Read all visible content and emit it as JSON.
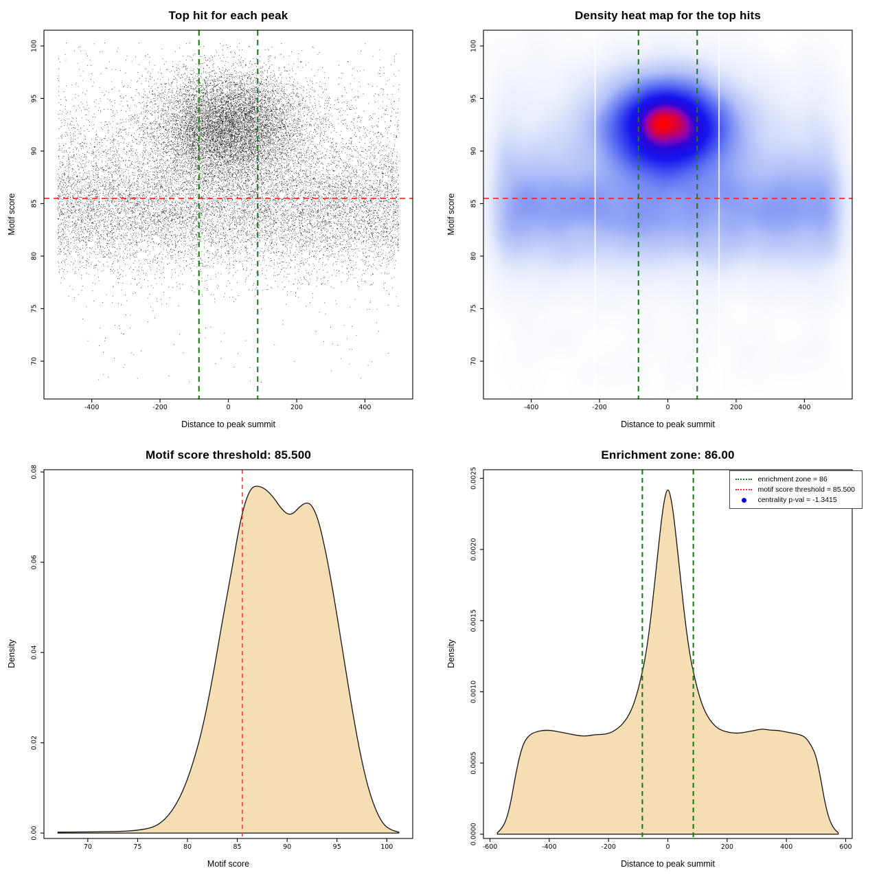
{
  "chart_data": [
    {
      "type": "scatter",
      "title": "Top hit for each peak",
      "xlabel": "Distance to peak summit",
      "ylabel": "Motif score",
      "xlim": [
        -540,
        540
      ],
      "ylim": [
        66.4,
        101.5
      ],
      "xticks": [
        -400,
        -200,
        0,
        200,
        400
      ],
      "xtick_labels": [
        "-400",
        "-200",
        "0",
        "200",
        "400"
      ],
      "yticks": [
        70,
        75,
        80,
        85,
        90,
        95,
        100
      ],
      "ytick_labels": [
        "70",
        "75",
        "80",
        "85",
        "90",
        "95",
        "100"
      ],
      "grid": false,
      "point_color": "#000000",
      "n_points": 22000,
      "motif_score_threshold": 85.5,
      "enrichment_zone": [
        -86,
        86
      ],
      "threshold_line": {
        "y": 85.5,
        "color": "#ee2222",
        "dash": [
          8,
          6
        ]
      },
      "zone_lines": {
        "x": [
          -86,
          86
        ],
        "color": "#1b7a1b",
        "dash": [
          8,
          6
        ]
      },
      "distribution": {
        "y_range": [
          67.5,
          100.4
        ],
        "x_range": [
          -505,
          505
        ],
        "components": [
          {
            "weight": 0.386,
            "x": {
              "kind": "uniform",
              "min": -500,
              "max": 500
            },
            "y": {
              "kind": "normal",
              "mean": 84.3,
              "sd": 3.0
            }
          },
          {
            "weight": 0.18,
            "x": {
              "kind": "uniform",
              "min": -500,
              "max": 500
            },
            "y": {
              "kind": "normal",
              "mean": 89.0,
              "sd": 4.4
            }
          },
          {
            "weight": 0.43,
            "x": {
              "kind": "normal",
              "mean": 0,
              "sd": 108
            },
            "y": {
              "kind": "normal",
              "mean": 92.4,
              "sd": 2.6
            }
          },
          {
            "weight": 0.004,
            "x": {
              "kind": "uniform",
              "min": -470,
              "max": 470
            },
            "y": {
              "kind": "uniform",
              "min": 68,
              "max": 77.5
            }
          }
        ]
      }
    },
    {
      "type": "heatmap",
      "title": "Density heat map for the top hits",
      "xlabel": "Distance to peak summit",
      "ylabel": "Motif score",
      "xlim": [
        -540,
        540
      ],
      "ylim": [
        66.4,
        101.5
      ],
      "xticks": [
        -400,
        -200,
        0,
        200,
        400
      ],
      "xtick_labels": [
        "-400",
        "-200",
        "0",
        "200",
        "400"
      ],
      "yticks": [
        70,
        75,
        80,
        85,
        90,
        95,
        100
      ],
      "ytick_labels": [
        "70",
        "75",
        "80",
        "85",
        "90",
        "95",
        "100"
      ],
      "grid": false,
      "hot_spot": {
        "x": 0,
        "y": 92.4
      },
      "threshold_line": {
        "y": 85.5,
        "color": "#ee2222",
        "dash": [
          8,
          6
        ]
      },
      "zone_lines": {
        "x": [
          -86,
          86
        ],
        "color": "#1b7a1b",
        "dash": [
          8,
          6
        ]
      },
      "white_gaps_x": [
        -213,
        150
      ],
      "colormap": [
        {
          "t": 0,
          "c": "#ffffff"
        },
        {
          "t": 0.18,
          "c": "#e8edfc"
        },
        {
          "t": 0.4,
          "c": "#aebef7"
        },
        {
          "t": 0.6,
          "c": "#5a6ef2"
        },
        {
          "t": 0.78,
          "c": "#1515ee"
        },
        {
          "t": 0.88,
          "c": "#2a06d8"
        },
        {
          "t": 0.93,
          "c": "#8c04b4"
        },
        {
          "t": 1,
          "c": "#ff0000"
        }
      ]
    },
    {
      "type": "area",
      "title": "Motif score threshold: 85.500",
      "xlabel": "Motif score",
      "ylabel": "Density",
      "xlim": [
        65.6,
        102.6
      ],
      "ylim": [
        -0.0012,
        0.0805
      ],
      "xticks": [
        70,
        75,
        80,
        85,
        90,
        95,
        100
      ],
      "xtick_labels": [
        "70",
        "75",
        "80",
        "85",
        "90",
        "95",
        "100"
      ],
      "yticks": [
        0,
        0.02,
        0.04,
        0.06,
        0.08
      ],
      "ytick_labels": [
        "0.00",
        "0.02",
        "0.04",
        "0.06",
        "0.08"
      ],
      "grid": false,
      "fill_color": "#f5deb3",
      "line_color": "#111111",
      "threshold_line": {
        "x": 85.5,
        "color": "#dd4444",
        "dash": [
          6,
          5
        ]
      },
      "curve": {
        "x": [
          67,
          73,
          75,
          76.5,
          77.5,
          78.5,
          79.5,
          80.5,
          81.5,
          82.5,
          83.5,
          84.5,
          85.2,
          85.8,
          86.4,
          87,
          87.8,
          88.6,
          89.3,
          90,
          90.6,
          91.2,
          91.9,
          92.5,
          93.2,
          94,
          94.8,
          95.6,
          96.4,
          97.2,
          98,
          98.8,
          99.6,
          100.4,
          101.2
        ],
        "y": [
          0.0002,
          0.0003,
          0.0006,
          0.0012,
          0.0025,
          0.005,
          0.009,
          0.015,
          0.023,
          0.034,
          0.047,
          0.059,
          0.068,
          0.0735,
          0.0765,
          0.077,
          0.0763,
          0.0745,
          0.0722,
          0.0706,
          0.0707,
          0.0722,
          0.0733,
          0.0727,
          0.069,
          0.061,
          0.051,
          0.04,
          0.029,
          0.019,
          0.011,
          0.0055,
          0.002,
          0.0007,
          0.0002
        ]
      }
    },
    {
      "type": "area",
      "title": "Enrichment zone: 86.00",
      "xlabel": "Distance to peak summit",
      "ylabel": "Density",
      "xlim": [
        -622,
        622
      ],
      "ylim": [
        -3e-05,
        0.00256
      ],
      "xticks": [
        -600,
        -400,
        -200,
        0,
        200,
        400,
        600
      ],
      "xtick_labels": [
        "-600",
        "-400",
        "-200",
        "0",
        "200",
        "400",
        "600"
      ],
      "yticks": [
        0,
        0.0005,
        0.001,
        0.0015,
        0.002,
        0.0025
      ],
      "ytick_labels": [
        "0.0000",
        "0.0005",
        "0.0010",
        "0.0015",
        "0.0020",
        "0.0025"
      ],
      "grid": false,
      "fill_color": "#f5deb3",
      "line_color": "#111111",
      "zone_lines": {
        "x": [
          -86,
          86
        ],
        "color": "#1b7a1b",
        "dash": [
          7,
          5
        ]
      },
      "legend": {
        "entries": [
          {
            "label": "enrichment zone = 86",
            "type": "line",
            "color": "#1b7a1b"
          },
          {
            "label": "motif score threshold = 85.500",
            "type": "line",
            "color": "#e03030"
          },
          {
            "label": "centrality p-val = -1.3415",
            "type": "point",
            "color": "#0000cc"
          }
        ]
      },
      "curve": {
        "x": [
          -575,
          -560,
          -545,
          -530,
          -515,
          -500,
          -485,
          -465,
          -445,
          -420,
          -395,
          -370,
          -345,
          -320,
          -295,
          -270,
          -245,
          -220,
          -195,
          -170,
          -150,
          -130,
          -110,
          -90,
          -75,
          -60,
          -45,
          -30,
          -15,
          0,
          15,
          30,
          45,
          60,
          75,
          90,
          110,
          130,
          150,
          170,
          195,
          220,
          245,
          270,
          295,
          320,
          345,
          370,
          395,
          420,
          445,
          465,
          485,
          500,
          515,
          530,
          545,
          560,
          575
        ],
        "y": [
          1e-05,
          4e-05,
          0.0001,
          0.00022,
          0.0004,
          0.00055,
          0.00065,
          0.0007,
          0.00072,
          0.00073,
          0.00073,
          0.00072,
          0.00071,
          0.0007,
          0.00069,
          0.00069,
          0.0007,
          0.0007,
          0.00071,
          0.00074,
          0.00078,
          0.00084,
          0.00094,
          0.0011,
          0.00125,
          0.00147,
          0.00175,
          0.00205,
          0.00232,
          0.00245,
          0.00232,
          0.00205,
          0.00175,
          0.00147,
          0.00125,
          0.0011,
          0.00094,
          0.00084,
          0.00078,
          0.00074,
          0.00072,
          0.00071,
          0.00071,
          0.00072,
          0.00073,
          0.00074,
          0.00073,
          0.00073,
          0.00072,
          0.00071,
          0.0007,
          0.00068,
          0.00062,
          0.00055,
          0.0004,
          0.00022,
          0.0001,
          4e-05,
          1e-05
        ]
      }
    }
  ]
}
